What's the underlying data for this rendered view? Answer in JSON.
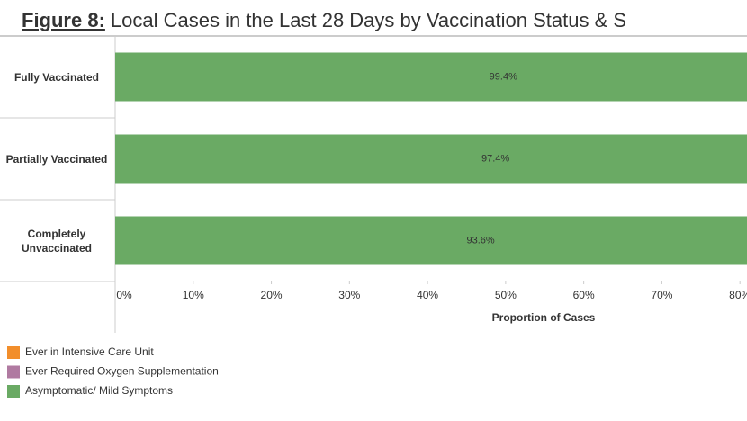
{
  "chart_data": {
    "type": "stacked_bar_horizontal",
    "title_prefix": "Figure 8:",
    "title": "Local Cases in the Last 28 Days by Vaccination Status & S",
    "x_label": "Proportion of Cases",
    "categories": [
      "Fully Vaccinated",
      "Partially Vaccinated",
      "Completely Unvaccinated"
    ],
    "series": [
      {
        "name": "Ever in Intensive Care Unit",
        "color": "#f28e2b",
        "values": [
          null,
          null,
          null
        ]
      },
      {
        "name": "Ever Required Oxygen Supplementation",
        "color": "#b07aa1",
        "values": [
          null,
          null,
          null
        ]
      },
      {
        "name": "Asymptomatic/ Mild Symptoms",
        "color": "#6aaa64",
        "values": [
          99.4,
          97.4,
          93.6
        ],
        "value_labels": [
          "99.4%",
          "97.4%",
          "93.6%"
        ]
      }
    ],
    "xlim": [
      0,
      80.9
    ],
    "xticks": [
      {
        "value": 0,
        "label": "0%"
      },
      {
        "value": 10,
        "label": "10%"
      },
      {
        "value": 20,
        "label": "20%"
      },
      {
        "value": 30,
        "label": "30%"
      },
      {
        "value": 40,
        "label": "40%"
      },
      {
        "value": 50,
        "label": "50%"
      },
      {
        "value": 60,
        "label": "60%"
      },
      {
        "value": 70,
        "label": "70%"
      },
      {
        "value": 80,
        "label": "80%"
      }
    ]
  }
}
